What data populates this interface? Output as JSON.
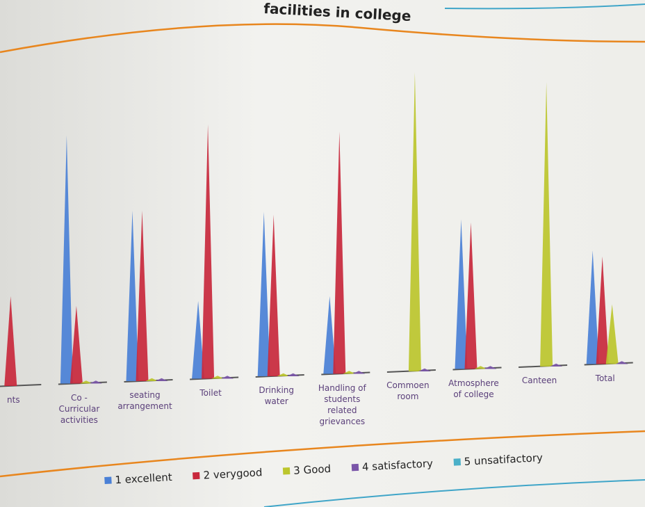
{
  "chart_data": {
    "type": "cone",
    "title": "facilities in college",
    "categories": [
      "nts",
      "Co - Curricular activities",
      "seating arrangement",
      "Toilet",
      "Drinking water",
      "Handling of students related grievances",
      "Commoen room",
      "Atmosphere of college",
      "Canteen",
      "Total"
    ],
    "series": [
      {
        "name": "1 excellent",
        "color": "#4a80d6",
        "values": [
          0,
          83,
          57,
          26,
          55,
          26,
          0,
          50,
          0,
          38
        ]
      },
      {
        "name": "2 verygood",
        "color": "#c8283c",
        "values": [
          30,
          26,
          57,
          85,
          54,
          81,
          0,
          49,
          0,
          36
        ]
      },
      {
        "name": "3 Good",
        "color": "#bcc62c",
        "values": [
          0,
          1,
          1,
          1,
          1,
          1,
          100,
          1,
          95,
          20
        ]
      },
      {
        "name": "4 satisfactory",
        "color": "#7a55a8",
        "values": [
          0,
          1,
          1,
          1,
          1,
          1,
          1,
          1,
          1,
          1
        ]
      },
      {
        "name": "5 unsatifactory",
        "color": "#4bb0c8",
        "values": [
          0,
          0,
          0,
          0,
          0,
          0,
          0,
          0,
          0,
          0
        ]
      }
    ],
    "legend": "bottom"
  }
}
